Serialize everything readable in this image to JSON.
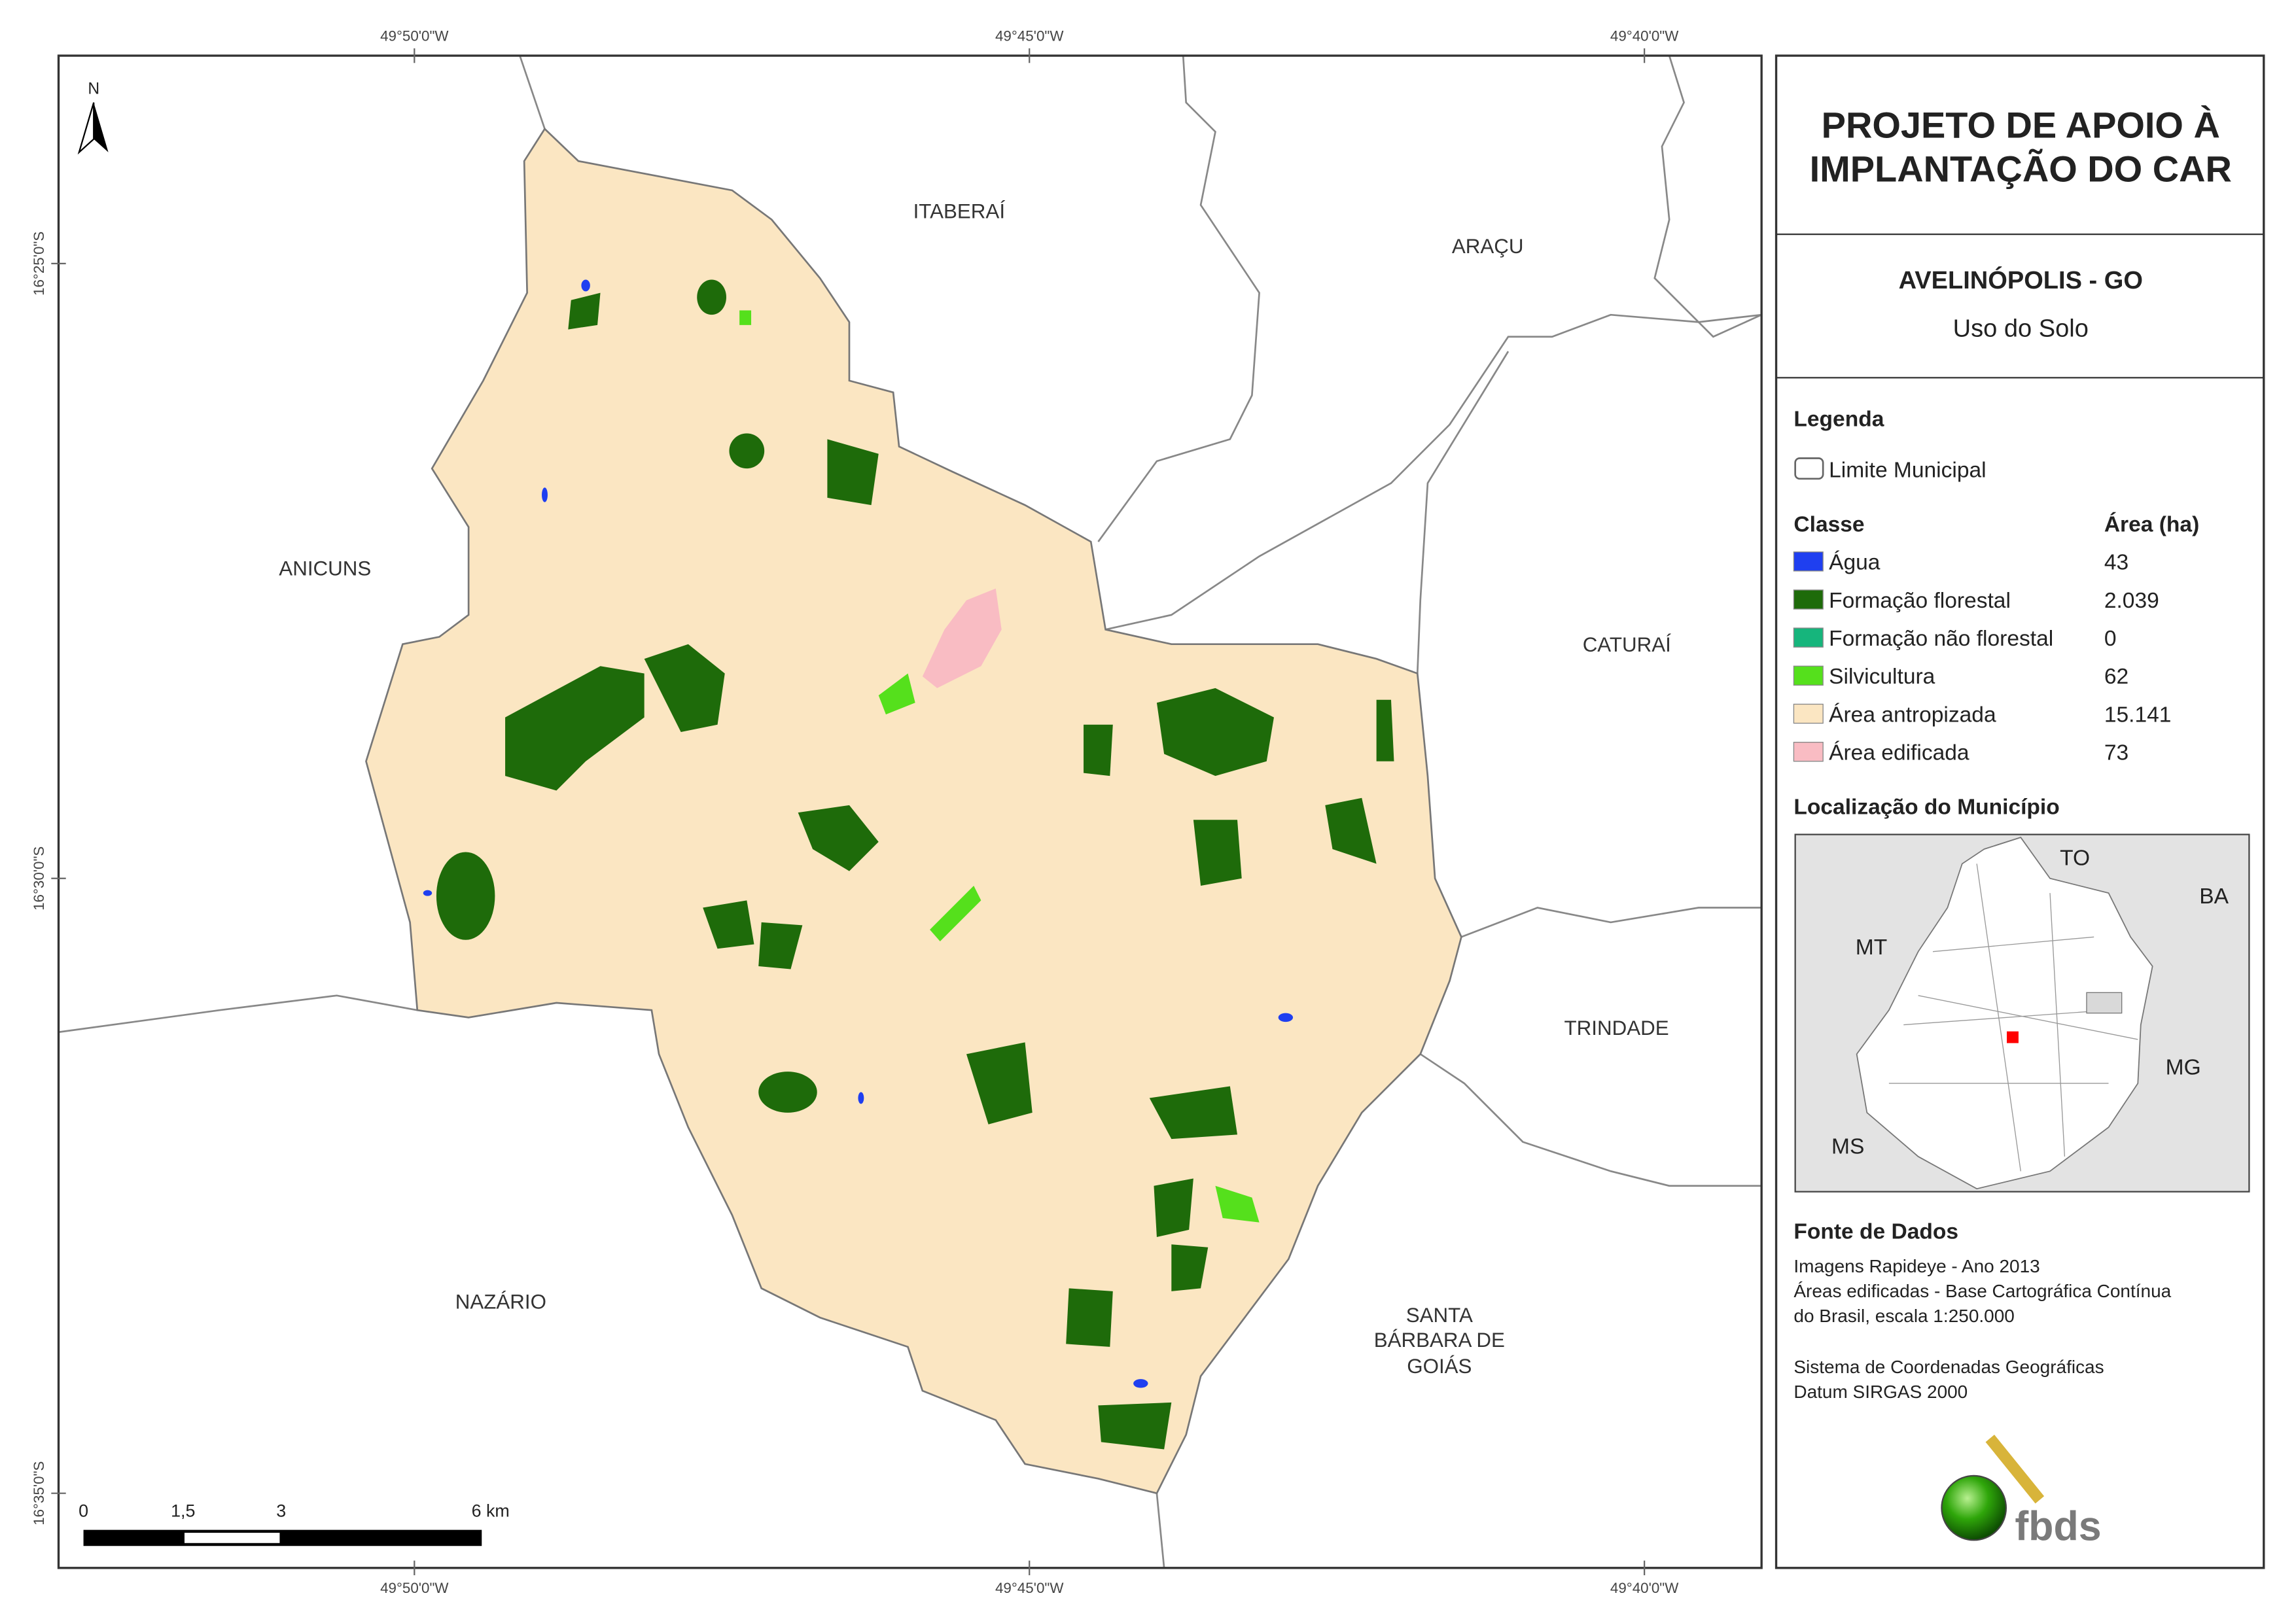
{
  "map": {
    "coordinates": {
      "longitude": [
        "49°50'0\"W",
        "49°45'0\"W",
        "49°40'0\"W"
      ],
      "latitude": [
        "16°25'0\"S",
        "16°30'0\"S",
        "16°35'0\"S"
      ]
    },
    "north": "N",
    "places": [
      "ITABERAÍ",
      "ARAÇU",
      "ANICUNS",
      "CATURAÍ",
      "TRINDADE",
      "NAZÁRIO",
      "SANTA",
      "BÁRBARA DE",
      "GOIÁS"
    ],
    "scale": [
      "0",
      "1,5",
      "3",
      "6 km"
    ]
  },
  "panel": {
    "title": [
      "PROJETO DE APOIO À",
      "IMPLANTAÇÃO DO CAR"
    ],
    "municipality": "AVELINÓPOLIS - GO",
    "subtitle": "Uso do Solo",
    "legend_title": "Legenda",
    "boundary": "Limite Municipal",
    "class_header": "Classe",
    "area_header": "Área (ha)",
    "classes": [
      {
        "name": "Água",
        "area": "43",
        "color": "#1f3ff0"
      },
      {
        "name": "Formação florestal",
        "area": "2.039",
        "color": "#1e6b0a"
      },
      {
        "name": "Formação não florestal",
        "area": "0",
        "color": "#16b57c"
      },
      {
        "name": "Silvicultura",
        "area": "62",
        "color": "#55e01c"
      },
      {
        "name": "Área antropizada",
        "area": "15.141",
        "color": "#fbe6c2"
      },
      {
        "name": "Área edificada",
        "area": "73",
        "color": "#f9bcc3"
      }
    ],
    "location_title": "Localização do Município",
    "location_labels": [
      "TO",
      "BA",
      "MT",
      "MG",
      "MS"
    ],
    "source_title": "Fonte de Dados",
    "source_lines": [
      "Imagens Rapideye - Ano 2013",
      "Áreas edificadas - Base Cartográfica Contínua",
      "do Brasil, escala 1:250.000",
      "Sistema de Coordenadas Geográficas",
      "Datum SIRGAS 2000"
    ],
    "logo": "fbds"
  }
}
